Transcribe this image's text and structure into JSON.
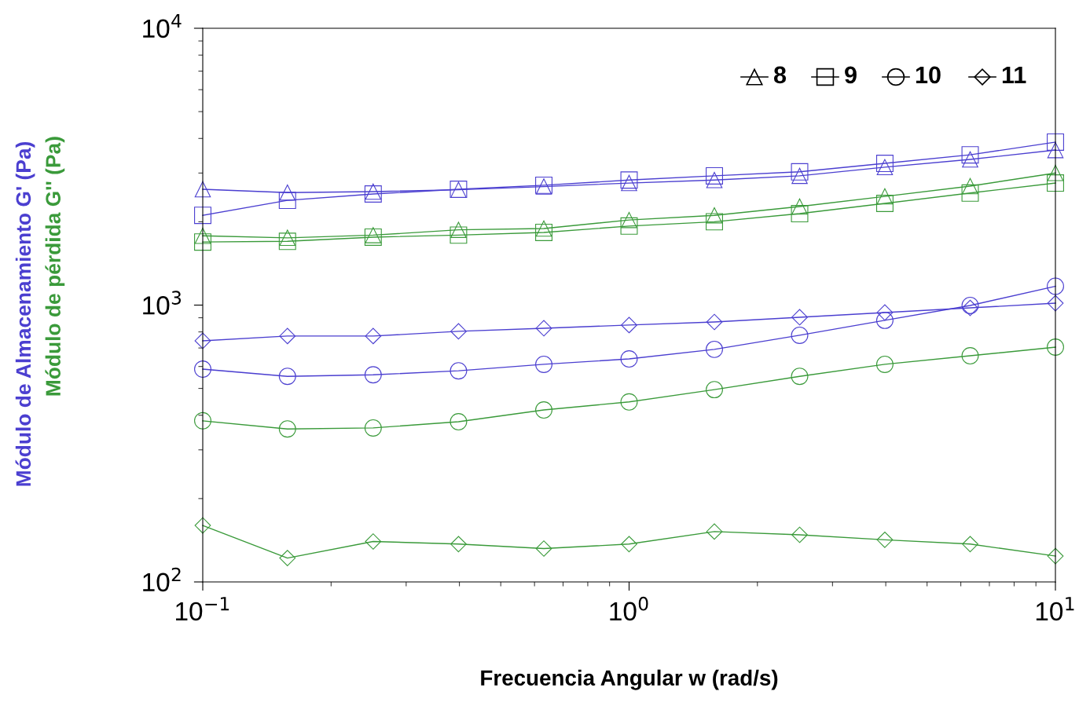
{
  "chart_data": {
    "type": "line",
    "xlabel": "Frecuencia Angular w (rad/s)",
    "ylabel": "Módulo de pérdida G'' (Pa)",
    "annotations": [
      "Módulo de Almacenamiento G' (Pa)",
      "8",
      "9",
      "10",
      "11"
    ],
    "log": "xy",
    "grid": false,
    "x": [
      0.1,
      0.158,
      0.251,
      0.398,
      0.631,
      1,
      1.585,
      2.512,
      3.98,
      6.31,
      10
    ],
    "xlim": [
      0.1,
      10
    ],
    "xticks": [
      {
        "value": 0.1,
        "label": "10$^{−1}$"
      },
      {
        "value": 1,
        "label": "10$^{0}$"
      },
      {
        "value": 10,
        "label": "10$^{1}$"
      }
    ],
    "ylim": [
      100,
      10000
    ],
    "yticks": [
      {
        "value": 100,
        "label": "10$^{2}$"
      },
      {
        "value": 1000,
        "label": "10$^{3}$"
      },
      {
        "value": 10000,
        "label": "10$^{4}$"
      }
    ],
    "series": [
      {
        "color": "#4b3fd0",
        "marker": "triangle",
        "values": [
          2620,
          2550,
          2570,
          2610,
          2680,
          2760,
          2830,
          2930,
          3150,
          3360,
          3630
        ]
      },
      {
        "color": "#4b3fd0",
        "marker": "square",
        "values": [
          2110,
          2390,
          2520,
          2620,
          2710,
          2830,
          2930,
          3030,
          3250,
          3490,
          3880
        ]
      },
      {
        "color": "#4b3fd0",
        "marker": "circle",
        "values": [
          587,
          553,
          560,
          579,
          611,
          639,
          692,
          778,
          881,
          997,
          1170
        ]
      },
      {
        "color": "#4b3fd0",
        "marker": "diamond",
        "values": [
          743,
          773,
          773,
          804,
          825,
          847,
          869,
          904,
          940,
          977,
          1016
        ]
      },
      {
        "color": "#3a9a3a",
        "marker": "triangle",
        "values": [
          1780,
          1750,
          1790,
          1870,
          1890,
          2030,
          2110,
          2270,
          2470,
          2690,
          3000
        ]
      },
      {
        "color": "#3a9a3a",
        "marker": "square",
        "values": [
          1690,
          1700,
          1760,
          1790,
          1830,
          1930,
          2000,
          2140,
          2330,
          2540,
          2760
        ]
      },
      {
        "color": "#3a9a3a",
        "marker": "circle",
        "values": [
          382,
          357,
          360,
          379,
          418,
          447,
          495,
          553,
          611,
          656,
          705
        ]
      },
      {
        "color": "#3a9a3a",
        "marker": "diamond",
        "values": [
          160,
          122,
          140,
          137,
          132,
          137,
          152,
          148,
          142,
          137,
          124
        ]
      }
    ]
  }
}
